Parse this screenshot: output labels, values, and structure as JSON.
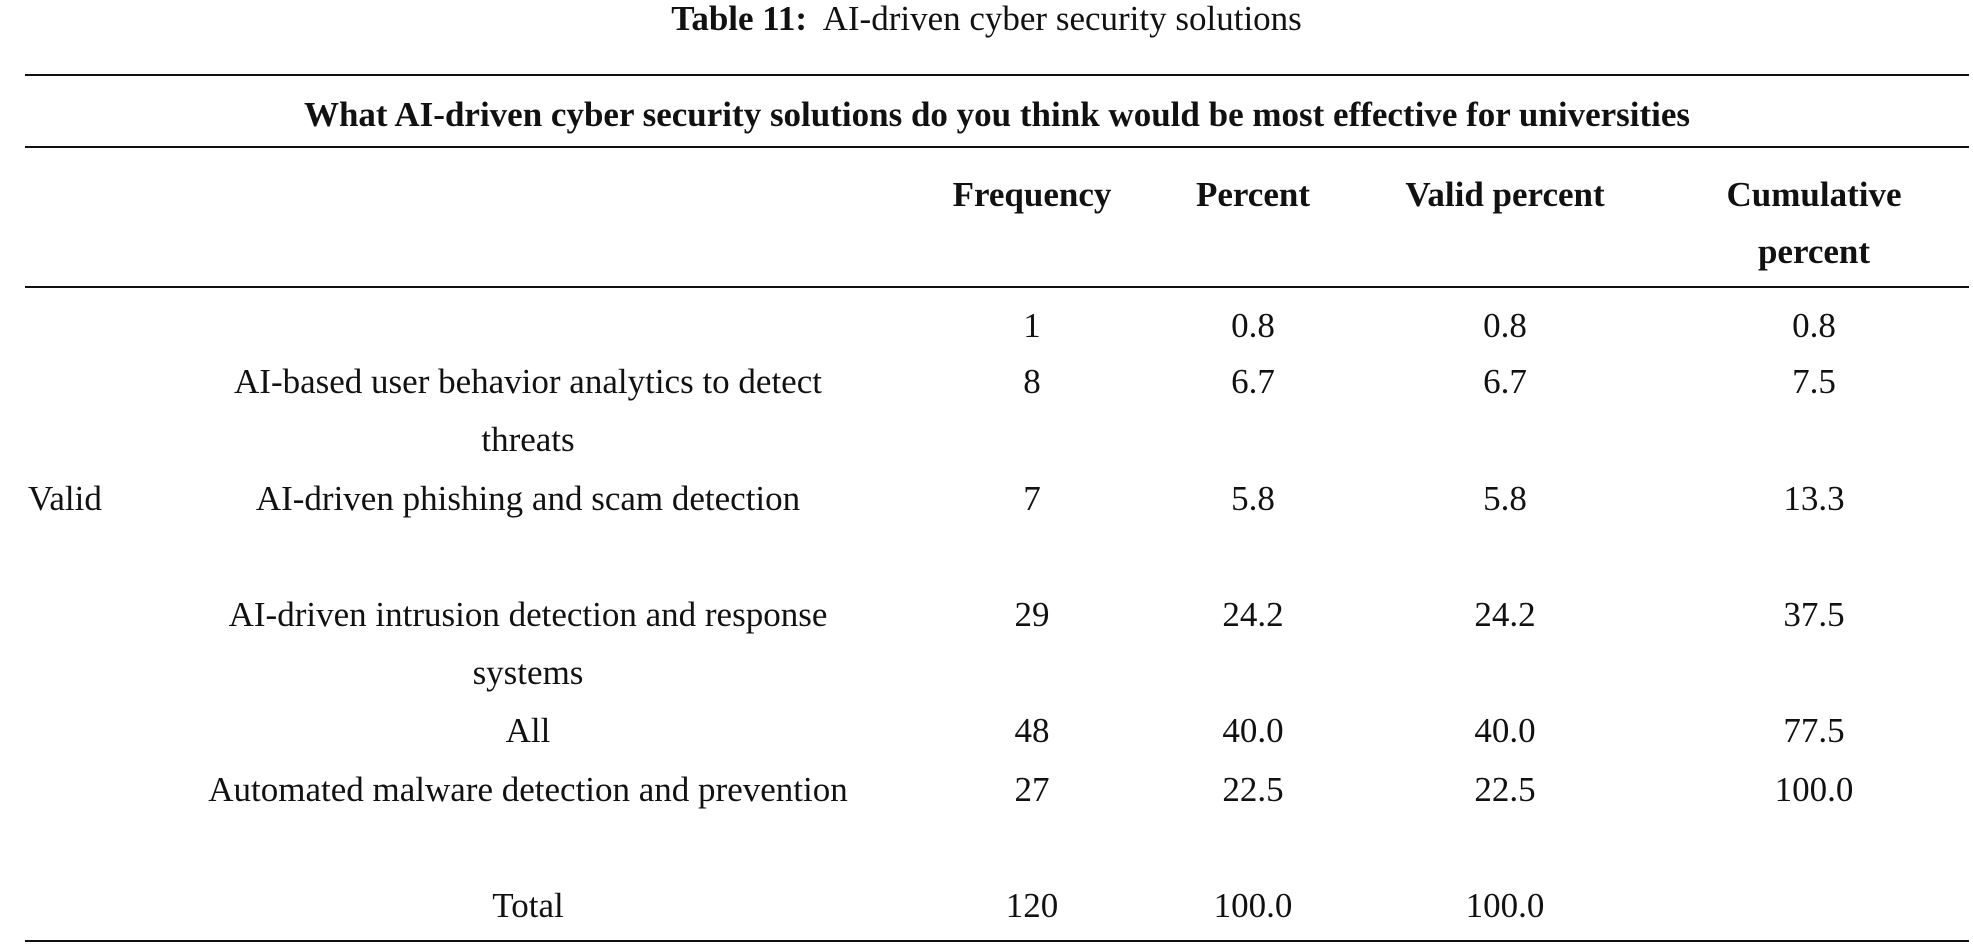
{
  "caption": {
    "label": "Table 11:",
    "text": "AI-driven cyber security solutions"
  },
  "table": {
    "question": "What AI-driven cyber security solutions do you think would be most effective for universities",
    "group": "Valid",
    "columns": [
      "Frequency",
      "Percent",
      "Valid percent",
      "Cumulative percent"
    ],
    "rows": [
      [
        null,
        "1",
        "0.8",
        "0.8",
        "0.8"
      ],
      [
        "AI-based user behavior analytics to detect threats",
        "8",
        "6.7",
        "6.7",
        "7.5"
      ],
      [
        "AI-driven phishing and scam detection",
        "7",
        "5.8",
        "5.8",
        "13.3"
      ],
      [
        "AI-driven intrusion detection and response systems",
        "29",
        "24.2",
        "24.2",
        "37.5"
      ],
      [
        "All",
        "48",
        "40.0",
        "40.0",
        "77.5"
      ],
      [
        "Automated malware detection and prevention",
        "27",
        "22.5",
        "22.5",
        "100.0"
      ],
      [
        "Total",
        "120",
        "100.0",
        "100.0",
        null
      ]
    ]
  }
}
